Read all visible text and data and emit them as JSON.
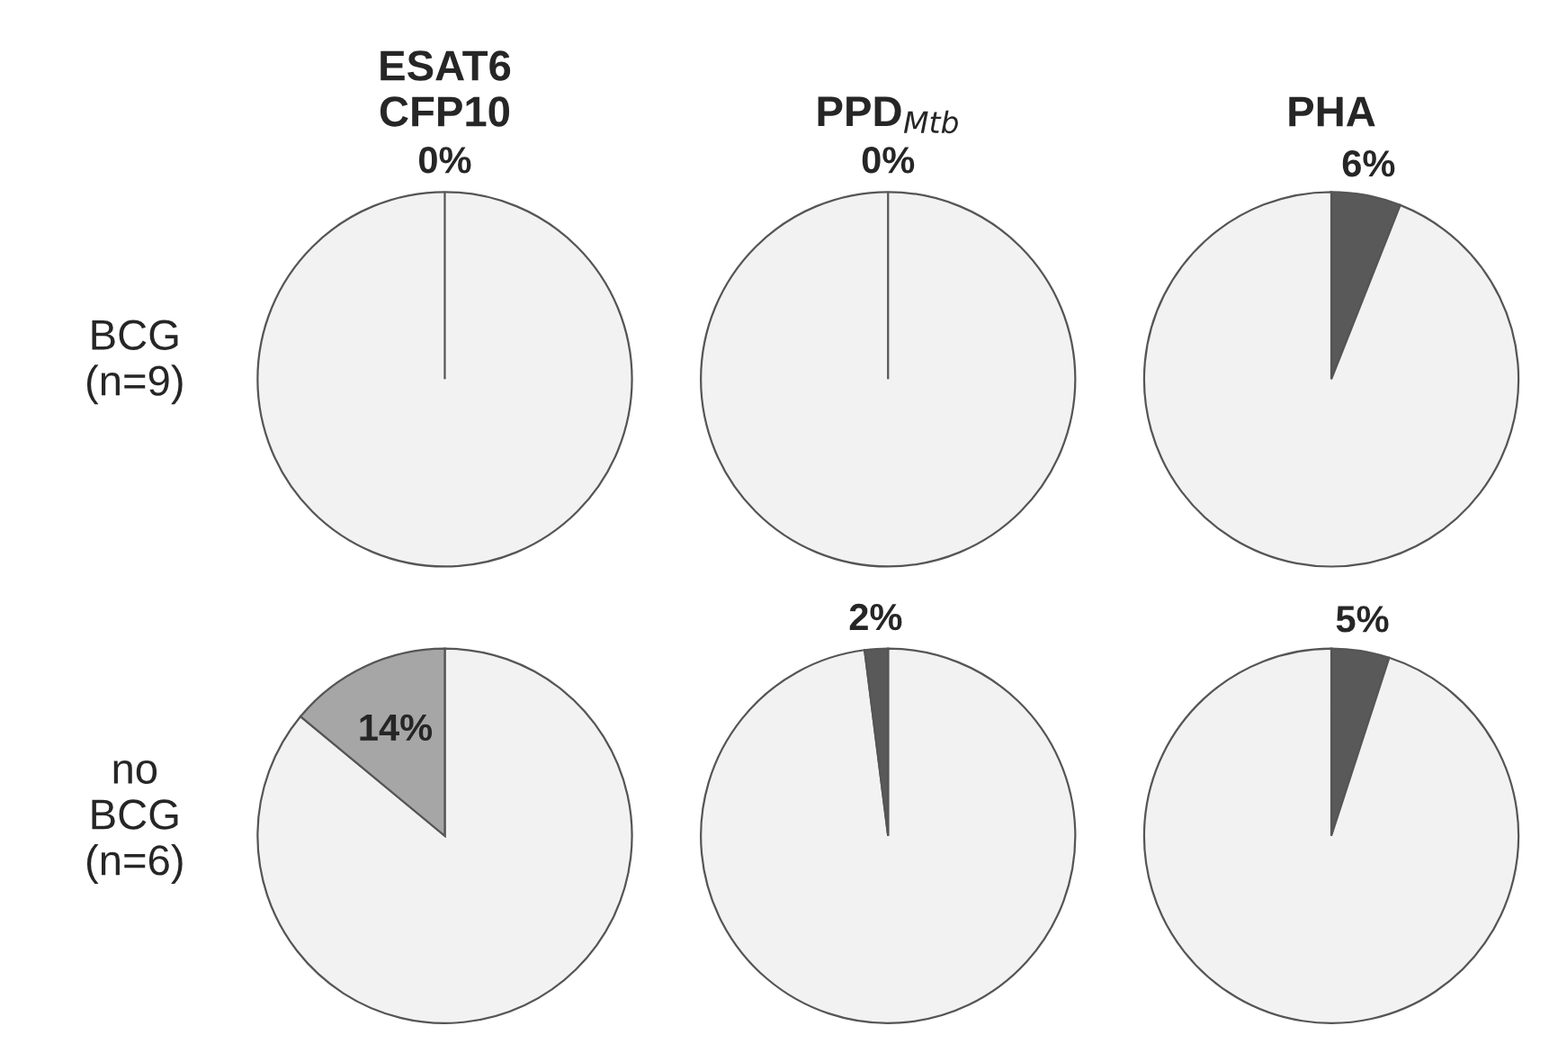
{
  "chart_data": [
    {
      "type": "pie",
      "title": "ESAT6\nCFP10",
      "ylabel": "BCG\n(n=9)",
      "categories": [
        null,
        null
      ],
      "values": [
        100,
        0
      ],
      "colors": [
        "#f2f2f2",
        "#a6a6a6"
      ],
      "value_labels": [
        null,
        "0%"
      ]
    },
    {
      "type": "pie",
      "title": "PPD$_{Mtb}$",
      "categories": [
        null,
        null
      ],
      "values": [
        100,
        0
      ],
      "colors": [
        "#f2f2f2",
        "#595959"
      ],
      "value_labels": [
        null,
        "0%"
      ]
    },
    {
      "type": "pie",
      "title": "PHA",
      "categories": [
        null,
        null
      ],
      "values": [
        6,
        94
      ],
      "colors": [
        "#595959",
        "#f2f2f2"
      ],
      "value_labels": [
        "6%",
        null
      ]
    },
    {
      "type": "pie",
      "ylabel": "no\nBCG\n(n=6)",
      "categories": [
        null,
        null
      ],
      "values": [
        86,
        14
      ],
      "colors": [
        "#f2f2f2",
        "#a6a6a6"
      ],
      "value_labels": [
        null,
        "14%"
      ]
    },
    {
      "type": "pie",
      "categories": [
        null,
        null
      ],
      "values": [
        98,
        2
      ],
      "colors": [
        "#f2f2f2",
        "#595959"
      ],
      "value_labels": [
        null,
        "2%"
      ]
    },
    {
      "type": "pie",
      "categories": [
        null,
        null
      ],
      "values": [
        5,
        95
      ],
      "colors": [
        "#595959",
        "#f2f2f2"
      ],
      "value_labels": [
        "5%",
        null
      ]
    }
  ]
}
